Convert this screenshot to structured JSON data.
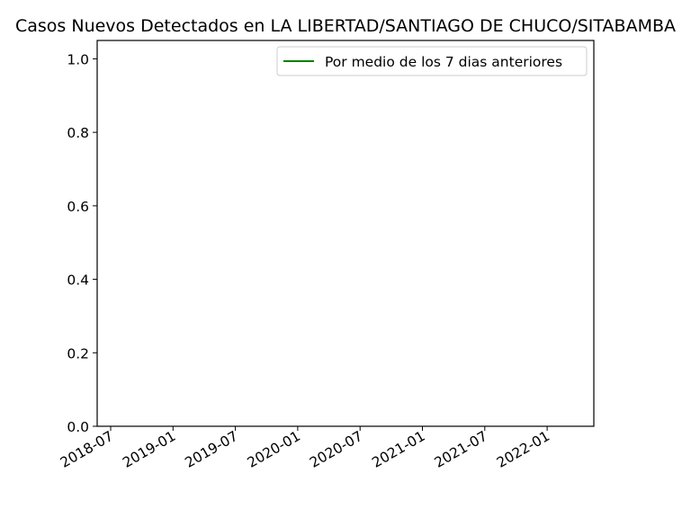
{
  "chart_data": {
    "type": "line",
    "title": "Casos Nuevos Detectados en LA LIBERTAD/SANTIAGO DE CHUCO/SITABAMBA",
    "xlabel": "",
    "ylabel": "",
    "x_tick_labels": [
      "2018-07",
      "2019-01",
      "2019-07",
      "2020-01",
      "2020-07",
      "2021-01",
      "2021-07",
      "2022-01"
    ],
    "y_tick_labels": [
      "0.0",
      "0.2",
      "0.4",
      "0.6",
      "0.8",
      "1.0"
    ],
    "y_ticks": [
      0.0,
      0.2,
      0.4,
      0.6,
      0.8,
      1.0
    ],
    "ylim": [
      0,
      1.05
    ],
    "grid": false,
    "legend_position": "upper-right",
    "series": [
      {
        "name": "Por medio de los 7 dias anteriores",
        "color": "#008000",
        "x": [],
        "y": []
      }
    ]
  }
}
